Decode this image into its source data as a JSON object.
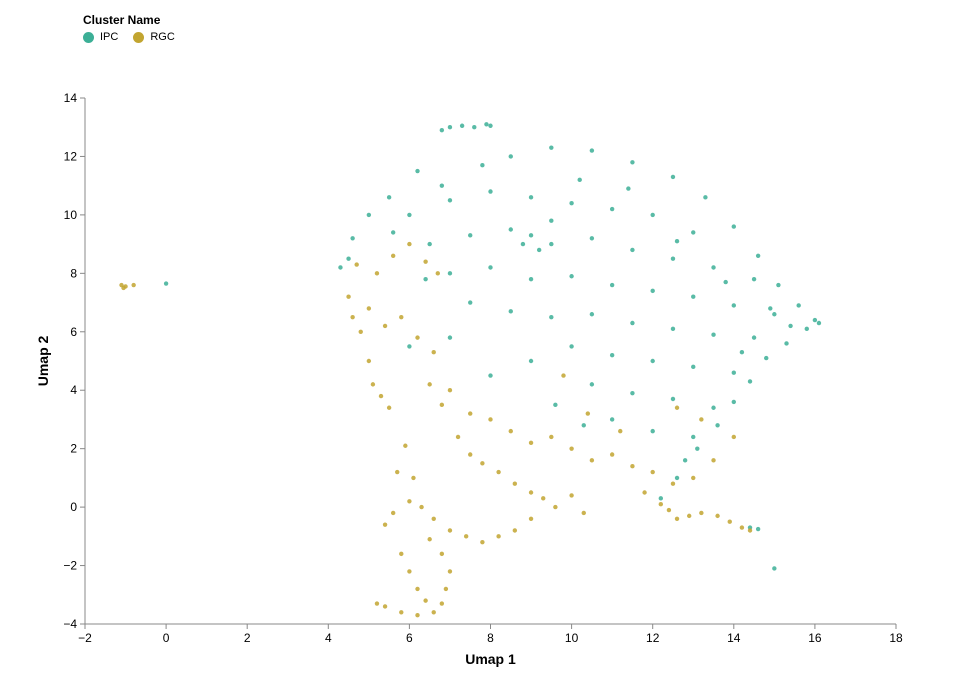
{
  "chart_data": {
    "type": "scatter",
    "legend": {
      "title": "Cluster Name",
      "position": "top-left",
      "entries": [
        {
          "name": "IPC",
          "color": "#3CAF96"
        },
        {
          "name": "RGC",
          "color": "#C2A530"
        }
      ]
    },
    "xlabel": "Umap 1",
    "ylabel": "Umap 2",
    "xlim": [
      -2,
      18
    ],
    "ylim": [
      -4,
      14
    ],
    "xticks": [
      -2,
      0,
      2,
      4,
      6,
      8,
      10,
      12,
      14,
      16,
      18
    ],
    "yticks": [
      -4,
      -2,
      0,
      2,
      4,
      6,
      8,
      10,
      12,
      14
    ],
    "xtick_labels": [
      "−2",
      "0",
      "2",
      "4",
      "6",
      "8",
      "10",
      "12",
      "14",
      "16",
      "18"
    ],
    "ytick_labels": [
      "−4",
      "−2",
      "0",
      "2",
      "4",
      "6",
      "8",
      "10",
      "12",
      "14"
    ],
    "grid": false,
    "series": [
      {
        "name": "IPC",
        "color": "#3CAF96",
        "points": [
          [
            0.0,
            7.65
          ],
          [
            15.0,
            -2.1
          ],
          [
            14.4,
            -0.7
          ],
          [
            14.6,
            -0.75
          ],
          [
            6.8,
            12.9
          ],
          [
            7.0,
            13.0
          ],
          [
            7.3,
            13.05
          ],
          [
            7.6,
            13.0
          ],
          [
            7.9,
            13.1
          ],
          [
            8.0,
            13.05
          ],
          [
            8.5,
            12.0
          ],
          [
            9.5,
            12.3
          ],
          [
            10.5,
            12.2
          ],
          [
            11.5,
            11.8
          ],
          [
            12.5,
            11.3
          ],
          [
            13.3,
            10.6
          ],
          [
            14.0,
            9.6
          ],
          [
            14.6,
            8.6
          ],
          [
            15.1,
            7.6
          ],
          [
            15.6,
            6.9
          ],
          [
            16.0,
            6.4
          ],
          [
            16.1,
            6.3
          ],
          [
            15.8,
            6.1
          ],
          [
            15.3,
            5.6
          ],
          [
            14.8,
            5.1
          ],
          [
            14.4,
            4.3
          ],
          [
            14.0,
            3.6
          ],
          [
            13.6,
            2.8
          ],
          [
            13.1,
            2.0
          ],
          [
            12.6,
            1.0
          ],
          [
            6.2,
            11.5
          ],
          [
            5.5,
            10.6
          ],
          [
            5.0,
            10.0
          ],
          [
            4.6,
            9.2
          ],
          [
            4.3,
            8.2
          ],
          [
            4.5,
            8.5
          ],
          [
            6.0,
            10.0
          ],
          [
            7.0,
            10.5
          ],
          [
            8.0,
            10.8
          ],
          [
            9.0,
            10.6
          ],
          [
            10.0,
            10.4
          ],
          [
            11.0,
            10.2
          ],
          [
            12.0,
            10.0
          ],
          [
            13.0,
            9.4
          ],
          [
            6.5,
            9.0
          ],
          [
            7.5,
            9.3
          ],
          [
            8.5,
            9.5
          ],
          [
            9.5,
            9.0
          ],
          [
            10.5,
            9.2
          ],
          [
            11.5,
            8.8
          ],
          [
            12.5,
            8.5
          ],
          [
            13.5,
            8.2
          ],
          [
            14.5,
            7.8
          ],
          [
            7.0,
            8.0
          ],
          [
            8.0,
            8.2
          ],
          [
            9.0,
            7.8
          ],
          [
            10.0,
            7.9
          ],
          [
            11.0,
            7.6
          ],
          [
            12.0,
            7.4
          ],
          [
            13.0,
            7.2
          ],
          [
            14.0,
            6.9
          ],
          [
            15.0,
            6.6
          ],
          [
            7.5,
            7.0
          ],
          [
            8.5,
            6.7
          ],
          [
            9.5,
            6.5
          ],
          [
            10.5,
            6.6
          ],
          [
            11.5,
            6.3
          ],
          [
            12.5,
            6.1
          ],
          [
            13.5,
            5.9
          ],
          [
            14.5,
            5.8
          ],
          [
            10.0,
            5.5
          ],
          [
            11.0,
            5.2
          ],
          [
            12.0,
            5.0
          ],
          [
            13.0,
            4.8
          ],
          [
            14.0,
            4.6
          ],
          [
            10.5,
            4.2
          ],
          [
            11.5,
            3.9
          ],
          [
            12.5,
            3.7
          ],
          [
            13.5,
            3.4
          ],
          [
            11.0,
            3.0
          ],
          [
            12.0,
            2.6
          ],
          [
            13.0,
            2.4
          ],
          [
            6.0,
            5.5
          ],
          [
            7.0,
            5.8
          ],
          [
            8.0,
            4.5
          ],
          [
            9.0,
            5.0
          ],
          [
            9.5,
            9.8
          ],
          [
            9.0,
            9.3
          ],
          [
            8.8,
            9.0
          ],
          [
            9.2,
            8.8
          ],
          [
            10.2,
            11.2
          ],
          [
            11.4,
            10.9
          ],
          [
            12.6,
            9.1
          ],
          [
            13.8,
            7.7
          ],
          [
            6.8,
            11.0
          ],
          [
            7.8,
            11.7
          ],
          [
            5.6,
            9.4
          ],
          [
            6.4,
            7.8
          ],
          [
            14.9,
            6.8
          ],
          [
            15.4,
            6.2
          ],
          [
            14.2,
            5.3
          ],
          [
            9.6,
            3.5
          ],
          [
            10.3,
            2.8
          ],
          [
            12.8,
            1.6
          ],
          [
            12.2,
            0.3
          ]
        ]
      },
      {
        "name": "RGC",
        "color": "#C2A530",
        "points": [
          [
            -1.1,
            7.6
          ],
          [
            -1.0,
            7.55
          ],
          [
            -0.8,
            7.6
          ],
          [
            -1.05,
            7.5
          ],
          [
            4.7,
            8.3
          ],
          [
            5.2,
            8.0
          ],
          [
            5.6,
            8.6
          ],
          [
            6.0,
            9.0
          ],
          [
            6.4,
            8.4
          ],
          [
            6.7,
            8.0
          ],
          [
            4.5,
            7.2
          ],
          [
            4.6,
            6.5
          ],
          [
            4.8,
            6.0
          ],
          [
            5.0,
            6.8
          ],
          [
            5.4,
            6.2
          ],
          [
            5.8,
            6.5
          ],
          [
            6.2,
            5.8
          ],
          [
            6.6,
            5.3
          ],
          [
            5.0,
            5.0
          ],
          [
            5.1,
            4.2
          ],
          [
            5.3,
            3.8
          ],
          [
            5.5,
            3.4
          ],
          [
            6.5,
            4.2
          ],
          [
            7.0,
            4.0
          ],
          [
            6.8,
            3.5
          ],
          [
            7.5,
            3.2
          ],
          [
            8.0,
            3.0
          ],
          [
            8.5,
            2.6
          ],
          [
            9.0,
            2.2
          ],
          [
            9.5,
            2.4
          ],
          [
            10.0,
            2.0
          ],
          [
            10.5,
            1.6
          ],
          [
            11.0,
            1.8
          ],
          [
            11.5,
            1.4
          ],
          [
            12.0,
            1.2
          ],
          [
            12.5,
            0.8
          ],
          [
            13.0,
            1.0
          ],
          [
            13.5,
            1.6
          ],
          [
            14.0,
            2.4
          ],
          [
            7.5,
            1.8
          ],
          [
            7.8,
            1.5
          ],
          [
            8.2,
            1.2
          ],
          [
            8.6,
            0.8
          ],
          [
            9.0,
            0.5
          ],
          [
            9.3,
            0.3
          ],
          [
            9.6,
            0.0
          ],
          [
            10.0,
            0.4
          ],
          [
            10.3,
            -0.2
          ],
          [
            9.0,
            -0.4
          ],
          [
            8.6,
            -0.8
          ],
          [
            8.2,
            -1.0
          ],
          [
            7.8,
            -1.2
          ],
          [
            7.4,
            -1.0
          ],
          [
            7.0,
            -0.8
          ],
          [
            6.6,
            -0.4
          ],
          [
            6.3,
            0.0
          ],
          [
            6.0,
            0.2
          ],
          [
            5.6,
            -0.2
          ],
          [
            5.4,
            -0.6
          ],
          [
            5.8,
            -1.6
          ],
          [
            6.0,
            -2.2
          ],
          [
            6.2,
            -2.8
          ],
          [
            6.4,
            -3.2
          ],
          [
            6.6,
            -3.6
          ],
          [
            6.2,
            -3.7
          ],
          [
            5.8,
            -3.6
          ],
          [
            5.4,
            -3.4
          ],
          [
            5.2,
            -3.3
          ],
          [
            6.8,
            -3.3
          ],
          [
            6.9,
            -2.8
          ],
          [
            7.0,
            -2.2
          ],
          [
            6.8,
            -1.6
          ],
          [
            6.5,
            -1.1
          ],
          [
            12.4,
            -0.1
          ],
          [
            12.6,
            -0.4
          ],
          [
            12.9,
            -0.3
          ],
          [
            13.2,
            -0.2
          ],
          [
            13.6,
            -0.3
          ],
          [
            13.9,
            -0.5
          ],
          [
            14.2,
            -0.7
          ],
          [
            14.4,
            -0.8
          ],
          [
            11.8,
            0.5
          ],
          [
            12.2,
            0.1
          ],
          [
            9.8,
            4.5
          ],
          [
            10.4,
            3.2
          ],
          [
            11.2,
            2.6
          ],
          [
            12.6,
            3.4
          ],
          [
            13.2,
            3.0
          ],
          [
            5.9,
            2.1
          ],
          [
            5.7,
            1.2
          ],
          [
            6.1,
            1.0
          ],
          [
            7.2,
            2.4
          ]
        ]
      }
    ]
  }
}
